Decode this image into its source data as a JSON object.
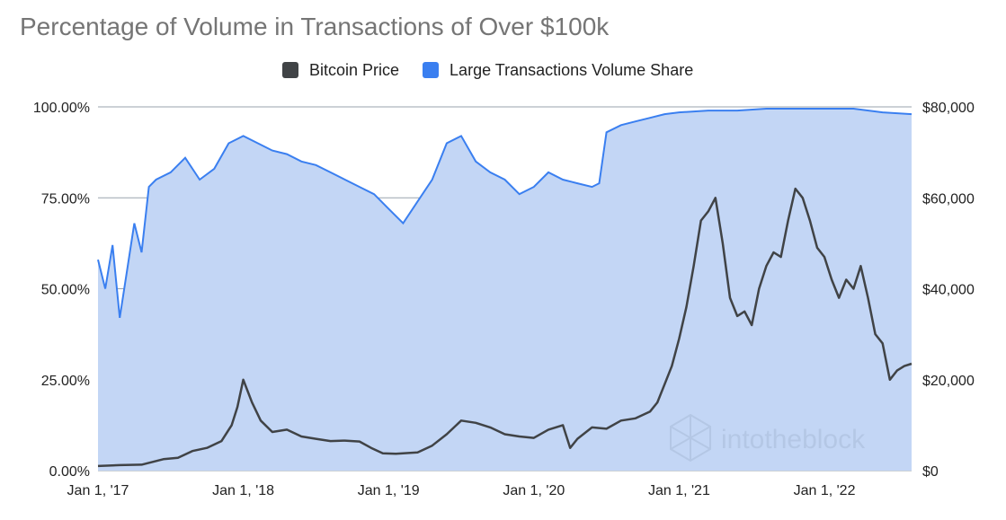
{
  "chart_data": {
    "type": "area",
    "title": "Percentage of Volume in Transactions of Over $100k",
    "legend": [
      {
        "name": "Bitcoin Price",
        "color": "#404346"
      },
      {
        "name": "Large Transactions Volume Share",
        "color": "#3a7ff0"
      }
    ],
    "x_ticks": [
      "Jan 1,  '17",
      "Jan 1,  '18",
      "Jan 1,  '19",
      "Jan 1,  '20",
      "Jan 1,  '21",
      "Jan 1,  '22"
    ],
    "x_range": [
      2017.0,
      2022.6
    ],
    "left_axis": {
      "label": "Large Transactions Volume Share",
      "ticks": [
        "0.00%",
        "25.00%",
        "50.00%",
        "75.00%",
        "100.00%"
      ],
      "ylim": [
        0,
        100
      ]
    },
    "right_axis": {
      "label": "Bitcoin Price",
      "ticks": [
        "$0",
        "$20,000",
        "$40,000",
        "$60,000",
        "$80,000"
      ],
      "ylim": [
        0,
        80000
      ]
    },
    "series": [
      {
        "name": "Large Transactions Volume Share",
        "axis": "left",
        "color": "#3a7ff0",
        "fill": "#c3d6f5",
        "x": [
          2017.0,
          2017.05,
          2017.1,
          2017.15,
          2017.2,
          2017.25,
          2017.3,
          2017.35,
          2017.4,
          2017.5,
          2017.6,
          2017.7,
          2017.8,
          2017.9,
          2018.0,
          2018.1,
          2018.2,
          2018.3,
          2018.4,
          2018.5,
          2018.6,
          2018.7,
          2018.8,
          2018.9,
          2019.0,
          2019.1,
          2019.2,
          2019.3,
          2019.4,
          2019.5,
          2019.6,
          2019.7,
          2019.8,
          2019.9,
          2020.0,
          2020.1,
          2020.2,
          2020.3,
          2020.4,
          2020.45,
          2020.5,
          2020.6,
          2020.7,
          2020.8,
          2020.9,
          2021.0,
          2021.2,
          2021.4,
          2021.6,
          2021.8,
          2022.0,
          2022.2,
          2022.4,
          2022.6
        ],
        "values": [
          58,
          50,
          62,
          42,
          55,
          68,
          60,
          78,
          80,
          82,
          86,
          80,
          83,
          90,
          92,
          90,
          88,
          87,
          85,
          84,
          82,
          80,
          78,
          76,
          72,
          68,
          74,
          80,
          90,
          92,
          85,
          82,
          80,
          76,
          78,
          82,
          80,
          79,
          78,
          79,
          93,
          95,
          96,
          97,
          98,
          98.5,
          99,
          99,
          99.5,
          99.5,
          99.5,
          99.5,
          98.5,
          98
        ]
      },
      {
        "name": "Bitcoin Price",
        "axis": "right",
        "color": "#404346",
        "x": [
          2017.0,
          2017.15,
          2017.3,
          2017.45,
          2017.55,
          2017.65,
          2017.75,
          2017.85,
          2017.92,
          2017.96,
          2018.0,
          2018.06,
          2018.12,
          2018.2,
          2018.3,
          2018.4,
          2018.5,
          2018.6,
          2018.7,
          2018.8,
          2018.88,
          2018.96,
          2019.05,
          2019.2,
          2019.3,
          2019.4,
          2019.5,
          2019.6,
          2019.7,
          2019.8,
          2019.9,
          2020.0,
          2020.1,
          2020.2,
          2020.25,
          2020.3,
          2020.4,
          2020.5,
          2020.6,
          2020.7,
          2020.8,
          2020.85,
          2020.9,
          2020.95,
          2021.0,
          2021.05,
          2021.1,
          2021.15,
          2021.2,
          2021.25,
          2021.3,
          2021.35,
          2021.4,
          2021.45,
          2021.5,
          2021.55,
          2021.6,
          2021.65,
          2021.7,
          2021.75,
          2021.8,
          2021.85,
          2021.9,
          2021.95,
          2022.0,
          2022.05,
          2022.1,
          2022.15,
          2022.2,
          2022.25,
          2022.3,
          2022.35,
          2022.4,
          2022.45,
          2022.5,
          2022.55,
          2022.6
        ],
        "values": [
          1000,
          1200,
          1300,
          2500,
          2800,
          4300,
          5000,
          6500,
          10000,
          14000,
          20000,
          15000,
          11000,
          8500,
          9000,
          7500,
          7000,
          6500,
          6600,
          6400,
          5000,
          3800,
          3700,
          4000,
          5500,
          8000,
          11000,
          10500,
          9500,
          8000,
          7500,
          7200,
          9000,
          10000,
          5000,
          7000,
          9500,
          9200,
          11000,
          11500,
          13000,
          15000,
          19000,
          23000,
          29000,
          36000,
          45000,
          55000,
          57000,
          60000,
          50000,
          38000,
          34000,
          35000,
          32000,
          40000,
          45000,
          48000,
          47000,
          55000,
          62000,
          60000,
          55000,
          49000,
          47000,
          42000,
          38000,
          42000,
          40000,
          45000,
          38000,
          30000,
          28000,
          20000,
          22000,
          23000,
          23500
        ]
      }
    ]
  },
  "watermark": {
    "brand": "intotheblock"
  }
}
